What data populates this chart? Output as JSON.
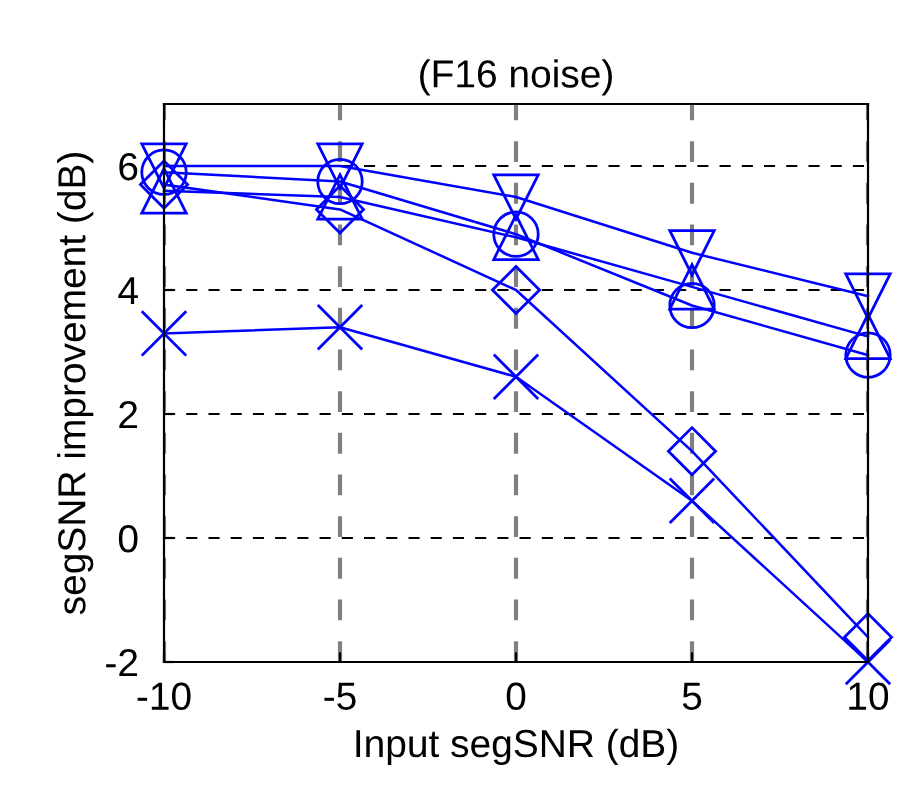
{
  "chart_data": {
    "type": "line",
    "title": "(F16 noise)",
    "xlabel": "Input segSNR (dB)",
    "ylabel": "segSNR improvement (dB)",
    "x": [
      -10,
      -5,
      0,
      5,
      10
    ],
    "xlim": [
      -10,
      10
    ],
    "xticks": [
      {
        "value": -10,
        "label": "-10"
      },
      {
        "value": -5,
        "label": "-5"
      },
      0,
      5,
      10
    ],
    "ylim": [
      -2,
      7
    ],
    "yticks": [
      {
        "value": -2,
        "label": "-2"
      },
      0,
      2,
      4,
      6
    ],
    "grid": true,
    "series": [
      {
        "color": "#0000ff",
        "marker": "triangle_down",
        "values": [
          6.0,
          6.0,
          5.5,
          4.6,
          3.9
        ]
      },
      {
        "color": "#0000ff",
        "marker": "circle",
        "values": [
          5.9,
          5.75,
          4.9,
          3.75,
          2.95
        ]
      },
      {
        "color": "#0000ff",
        "marker": "triangle",
        "values": [
          5.6,
          5.5,
          4.85,
          4.05,
          3.25
        ]
      },
      {
        "color": "#0000ff",
        "marker": "diamond",
        "values": [
          5.7,
          5.3,
          4.0,
          1.4,
          -1.6
        ]
      },
      {
        "color": "#0000ff",
        "marker": "cross",
        "values": [
          3.3,
          3.4,
          2.6,
          0.6,
          -2.0
        ]
      }
    ]
  }
}
